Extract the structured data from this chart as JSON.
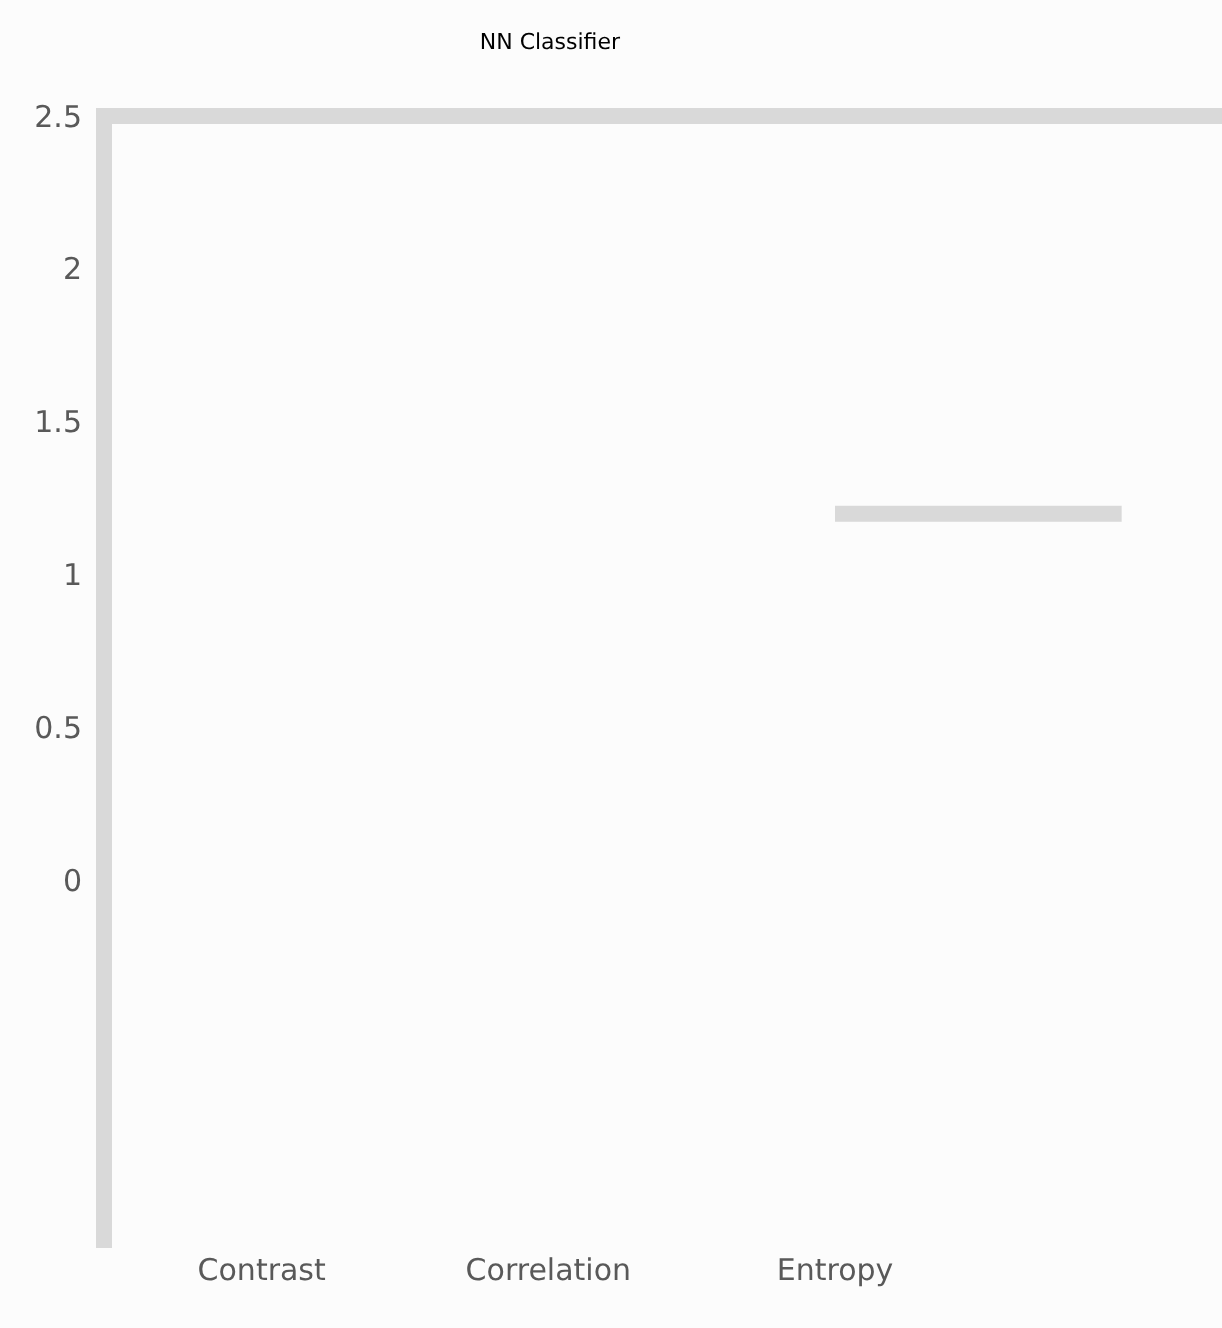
{
  "chart_data": {
    "type": "line",
    "title": "NN Classifier",
    "categories": [
      "Contrast",
      "Correlation",
      "Entropy",
      null
    ],
    "series": [
      {
        "color": "#d9d9d9",
        "values": [
          null,
          null,
          1.2,
          1.2
        ]
      }
    ],
    "ylim": [
      -1.2,
      2.5
    ],
    "yticks": [
      0,
      0.5,
      1,
      1.5,
      2,
      2.5
    ],
    "grid": false,
    "marker": "none",
    "line_style": "solid"
  }
}
